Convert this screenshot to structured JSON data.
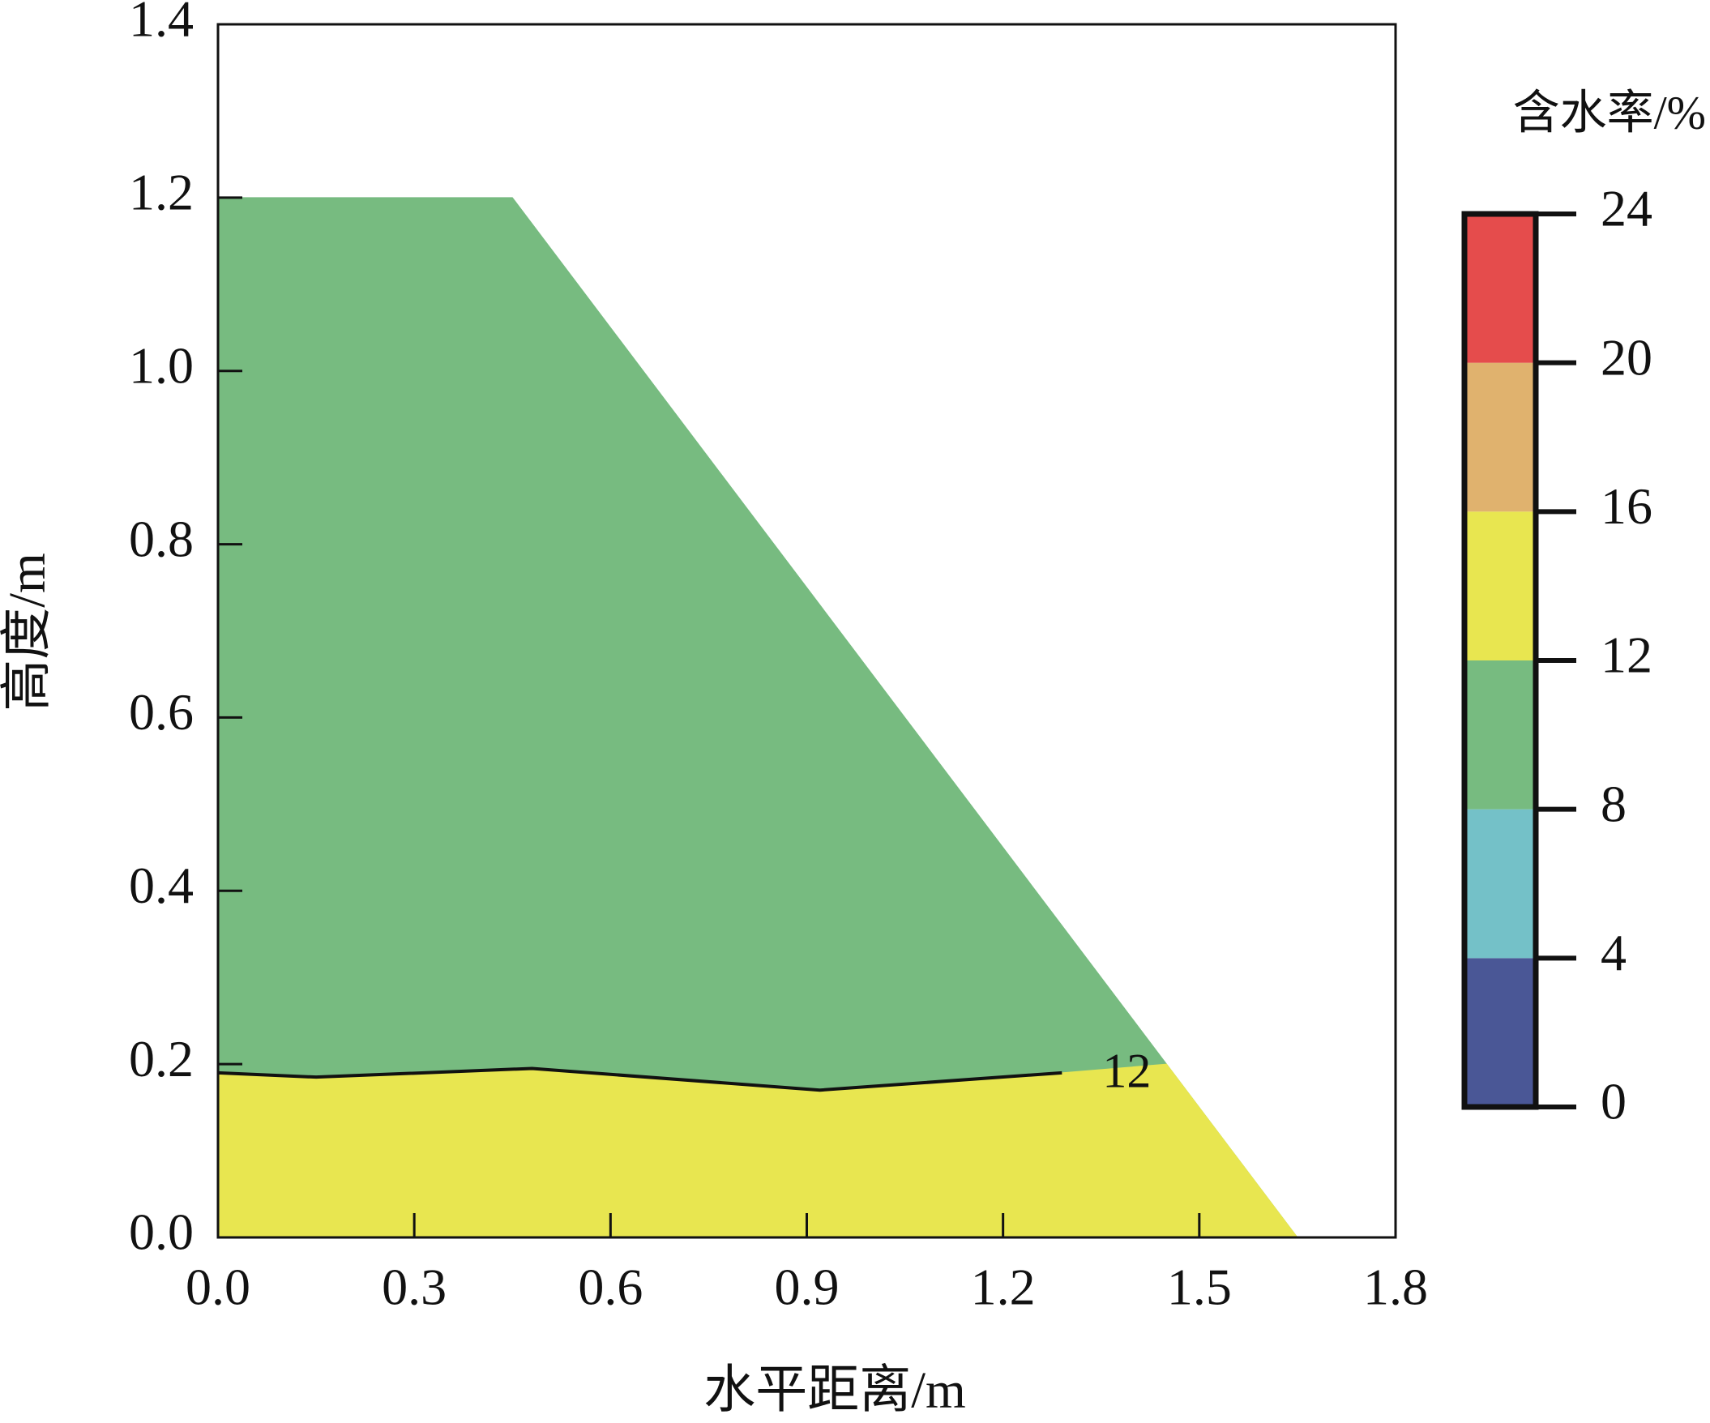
{
  "chart_data": {
    "type": "contour",
    "x_label": "水平距离/m",
    "y_label": "高度/m",
    "xlim": [
      0,
      1.8
    ],
    "ylim": [
      0,
      1.4
    ],
    "xticks": [
      {
        "value": 0,
        "label": "0.0"
      },
      0.3,
      0.6,
      0.9,
      1.2,
      1.5,
      1.8
    ],
    "yticks": [
      {
        "value": 0,
        "label": "0.0"
      },
      0.2,
      0.4,
      0.6,
      0.8,
      {
        "value": 1,
        "label": "1.0"
      },
      1.2,
      1.4
    ],
    "regions": [
      {
        "color": "#77bb80",
        "x": [
          0,
          0,
          0.45,
          1.65
        ],
        "y": [
          0,
          1.2,
          1.2,
          0
        ]
      },
      {
        "color": "#e8e650",
        "x": [
          0,
          0,
          0.15,
          0.48,
          0.92,
          1.29,
          1.45,
          1.65
        ],
        "y": [
          0,
          0.19,
          0.185,
          0.195,
          0.17,
          0.19,
          0.2,
          0
        ]
      }
    ],
    "contour": {
      "level": 12,
      "x": [
        0,
        0.15,
        0.48,
        0.92,
        1.29
      ],
      "y": [
        0.19,
        0.185,
        0.195,
        0.17,
        0.19
      ]
    },
    "colorbar": {
      "title": "含水率/%",
      "levels": [
        0,
        4,
        8,
        12,
        16,
        20,
        24
      ],
      "colors": [
        "#4a5796",
        "#74c1c8",
        "#77bb80",
        "#e8e650",
        "#e0b26e",
        "#e54c4c"
      ]
    }
  }
}
